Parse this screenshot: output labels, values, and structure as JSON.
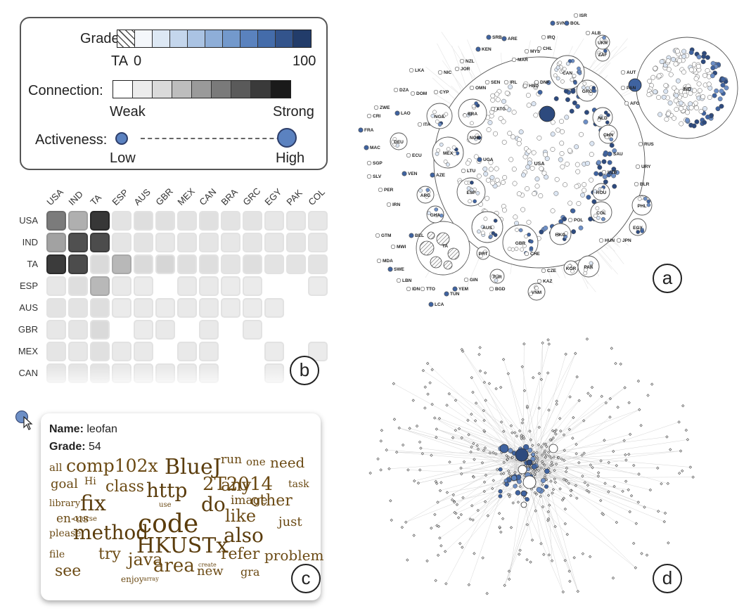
{
  "legend": {
    "grade_label": "Grade:",
    "grade_ta": "TA",
    "grade_min": "0",
    "grade_max": "100",
    "grade_colors": [
      "#f4f7fb",
      "#dde8f4",
      "#c4d6ec",
      "#aac3e3",
      "#8eaed8",
      "#7399cc",
      "#5a82be",
      "#446caa",
      "#33548c",
      "#223c6a"
    ],
    "connection_label": "Connection:",
    "connection_min": "Weak",
    "connection_max": "Strong",
    "connection_colors": [
      "#ffffff",
      "#ececec",
      "#dadada",
      "#bdbdbd",
      "#9a9a9a",
      "#7a7a7a",
      "#5a5a5a",
      "#3a3a3a",
      "#1a1a1a"
    ],
    "activeness_label": "Activeness:",
    "activeness_min": "Low",
    "activeness_max": "High"
  },
  "matrix": {
    "columns": [
      "USA",
      "IND",
      "TA",
      "ESP",
      "AUS",
      "GBR",
      "MEX",
      "CAN",
      "BRA",
      "GRC",
      "EGY",
      "PAK",
      "COL"
    ],
    "rows": [
      "USA",
      "IND",
      "TA",
      "ESP",
      "AUS",
      "GBR",
      "MEX",
      "CAN"
    ],
    "values": [
      [
        0.58,
        0.34,
        0.9,
        0.1,
        0.12,
        0.11,
        0.1,
        0.11,
        0.1,
        0.1,
        0.08,
        0.08,
        0.08
      ],
      [
        0.4,
        0.78,
        0.8,
        0.09,
        0.1,
        0.08,
        0.09,
        0.09,
        0.08,
        0.09,
        0.08,
        0.09,
        0.08
      ],
      [
        0.88,
        0.8,
        0.14,
        0.3,
        0.14,
        0.16,
        0.12,
        0.12,
        0.1,
        0.12,
        0.1,
        0.1,
        0.1
      ],
      [
        0.08,
        0.12,
        0.3,
        0.07,
        0.06,
        0,
        0.07,
        0.07,
        0.06,
        0.06,
        0,
        0,
        0.06
      ],
      [
        0.1,
        0.1,
        0.12,
        0.06,
        0.07,
        0.06,
        0.07,
        0.07,
        0.06,
        0.06,
        0.06,
        0,
        0
      ],
      [
        0.08,
        0.09,
        0.14,
        0,
        0.06,
        0.07,
        0,
        0.07,
        0,
        0.06,
        0,
        0,
        0
      ],
      [
        0.09,
        0.08,
        0.11,
        0.07,
        0.07,
        0,
        0.07,
        0.07,
        0,
        0,
        0.06,
        0,
        0.06
      ],
      [
        0.09,
        0.09,
        0.1,
        0.07,
        0.07,
        0.07,
        0.07,
        0.07,
        0,
        0,
        0.06,
        0,
        0
      ]
    ]
  },
  "tooltip": {
    "name_label": "Name:",
    "name_value": "leofan",
    "grade_label": "Grade:",
    "grade_value": "54",
    "words": [
      "all",
      "comp102x",
      "BlueJ",
      "run",
      "one",
      "need",
      "goal",
      "Hi",
      "class",
      "http",
      "2T2014",
      "any",
      "task",
      "library",
      "fix",
      "use",
      "do",
      "image",
      "other",
      "en-us",
      "course",
      "code",
      "like",
      "just",
      "please",
      "method",
      "HKUSTx",
      "also",
      "file",
      "try",
      "java",
      "refer",
      "problem",
      "see",
      "enjoy",
      "array",
      "area",
      "create",
      "new",
      "gra"
    ]
  },
  "network_a": {
    "country_labels": [
      "ISR",
      "SVN",
      "BOL",
      "ALB",
      "UKR",
      "SRB",
      "ARE",
      "IRQ",
      "ZAF",
      "KEN",
      "MYS",
      "CHL",
      "NZL",
      "MAR",
      "JOR",
      "LKA",
      "NIC",
      "CAN",
      "AUT",
      "SEN",
      "IRL",
      "PAN",
      "HND",
      "DNK",
      "DZA",
      "DOM",
      "CYP",
      "OMN",
      "GRC",
      "IND",
      "AFG",
      "ZWE",
      "LAO",
      "NGA",
      "BRA",
      "ATG",
      "CRI",
      "ITA",
      "NLD",
      "FRA",
      "DEU",
      "NOR",
      "CHN",
      "MAC",
      "MEX",
      "ECU",
      "UGA",
      "USA",
      "SAU",
      "RUS",
      "SGP",
      "LTU",
      "UZB",
      "URY",
      "SLV",
      "VEN",
      "AZE",
      "PER",
      "ARG",
      "ESP",
      "BLR",
      "ROU",
      "IRN",
      "GHA",
      "PHL",
      "COL",
      "AUS",
      "POL",
      "GTM",
      "BEL",
      "GBR",
      "HKG",
      "EGY",
      "MWI",
      "TA",
      "HUN",
      "JPN",
      "MDA",
      "PRT",
      "CHE",
      "SWE",
      "CZE",
      "PAK",
      "LBN",
      "GIN",
      "KAZ",
      "KOR",
      "IDN",
      "TTO",
      "TUR",
      "YEM",
      "TUN",
      "BGD",
      "VNM",
      "LCA"
    ]
  },
  "panel_labels": [
    "a",
    "b",
    "c",
    "d"
  ]
}
